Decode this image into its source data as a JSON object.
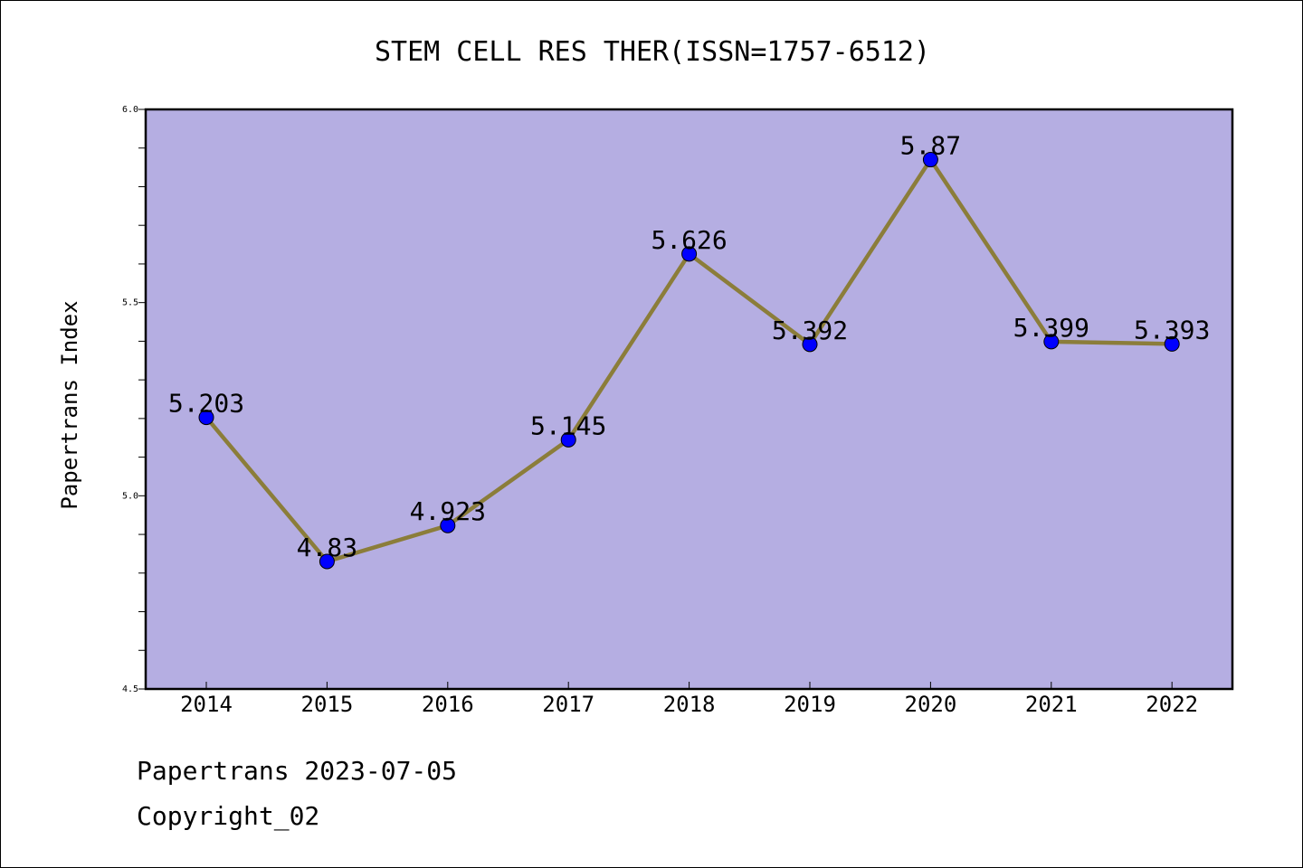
{
  "chart_data": {
    "type": "line",
    "title": "STEM CELL RES THER(ISSN=1757-6512)",
    "xlabel": "",
    "ylabel": "Papertrans Index",
    "categories": [
      "2014",
      "2015",
      "2016",
      "2017",
      "2018",
      "2019",
      "2020",
      "2021",
      "2022"
    ],
    "series": [
      {
        "values": [
          5.203,
          4.83,
          4.923,
          5.145,
          5.626,
          5.392,
          5.87,
          5.399,
          5.393
        ],
        "data_labels": [
          "5.203",
          "4.83",
          "4.923",
          "5.145",
          "5.626",
          "5.392",
          "5.87",
          "5.399",
          "5.393"
        ]
      }
    ],
    "ylim": [
      4.5,
      6.0
    ],
    "yticks": [
      "4.5",
      "5.0",
      "5.5",
      "6.0"
    ],
    "grid": false,
    "colors": {
      "plot_background": "#b5aee2",
      "line": "#8b7d3a",
      "marker": "#0000ff"
    }
  },
  "footer": {
    "line1": "Papertrans 2023-07-05",
    "line2": "Copyright_02"
  }
}
